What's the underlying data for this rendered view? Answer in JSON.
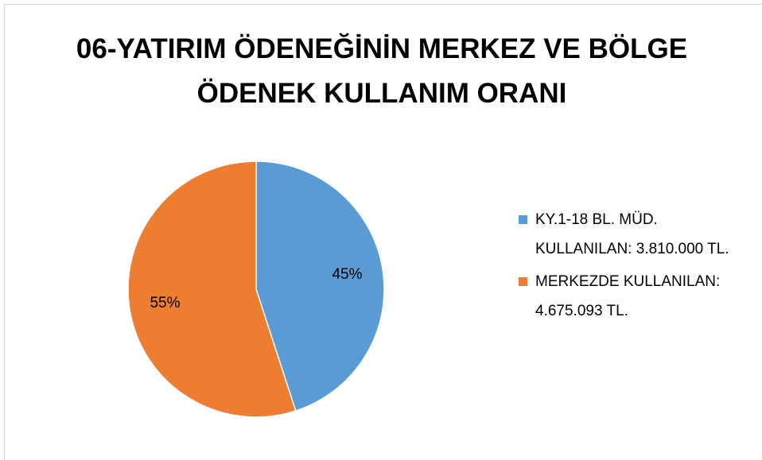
{
  "chart_data": {
    "type": "pie",
    "title": "06-YATIRIM ÖDENEĞİNİN MERKEZ VE BÖLGE ÖDENEK KULLANIM ORANI",
    "series": [
      {
        "name": "KY.1-18 BL. MÜD. KULLANILAN: 3.810.000 TL.",
        "color": "#5b9bd5",
        "values": [
          45
        ],
        "value_labels": [
          "45%"
        ]
      },
      {
        "name": "MERKEZDE KULLANILAN: 4.675.093 TL.",
        "color": "#ed7d31",
        "values": [
          55
        ],
        "value_labels": [
          "55%"
        ]
      }
    ],
    "legend": "right"
  }
}
